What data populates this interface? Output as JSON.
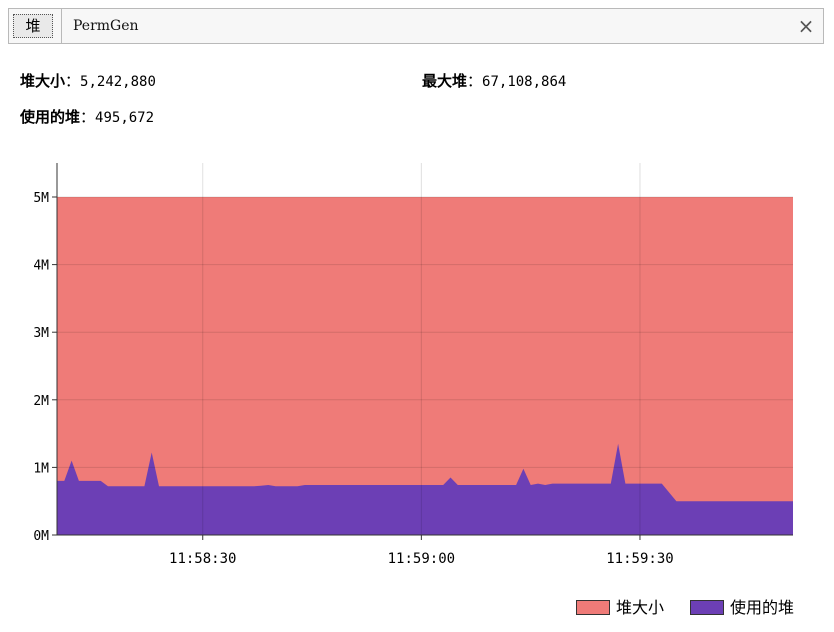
{
  "tabs": {
    "active_label": "堆",
    "other_label": "PermGen",
    "close_glyph": "×"
  },
  "stats": {
    "heap_size": {
      "label": "堆大小",
      "sep": "：",
      "value": "5,242,880"
    },
    "max_heap": {
      "label": "最大堆",
      "sep": "：",
      "value": "67,108,864"
    },
    "used_heap": {
      "label": "使用的堆",
      "sep": "：",
      "value": "495,672"
    }
  },
  "legend": {
    "heap_size": "堆大小",
    "used_heap": "使用的堆"
  },
  "colors": {
    "heap_size": "#ef7b78",
    "used_heap": "#6c3fb5"
  },
  "chart_data": {
    "type": "area",
    "y_ticks": [
      "0M",
      "1M",
      "2M",
      "3M",
      "4M",
      "5M"
    ],
    "ylim": [
      0,
      5
    ],
    "x_ticks": [
      {
        "label": "11:58:30",
        "t": 30
      },
      {
        "label": "11:59:00",
        "t": 60
      },
      {
        "label": "11:59:30",
        "t": 90
      }
    ],
    "xlim": [
      10,
      111
    ],
    "grid": true,
    "legend_position": "bottom-right",
    "series": [
      {
        "name": "堆大小",
        "x": [
          10,
          111
        ],
        "values": [
          5.0,
          5.0
        ]
      },
      {
        "name": "使用的堆",
        "x": [
          10,
          11,
          12,
          13,
          16,
          17,
          20,
          22,
          23,
          24,
          29,
          32,
          37,
          38,
          39,
          40,
          41,
          43,
          44,
          48,
          55,
          61,
          62,
          63,
          64,
          65,
          67,
          72,
          73,
          74,
          75,
          76,
          77,
          78,
          85,
          86,
          87,
          88,
          90,
          91,
          92,
          93,
          95,
          98,
          99,
          101,
          104,
          111
        ],
        "values": [
          0.8,
          0.8,
          1.1,
          0.8,
          0.8,
          0.72,
          0.72,
          0.72,
          1.22,
          0.72,
          0.72,
          0.72,
          0.72,
          0.73,
          0.74,
          0.72,
          0.72,
          0.72,
          0.74,
          0.74,
          0.74,
          0.74,
          0.74,
          0.74,
          0.85,
          0.74,
          0.74,
          0.74,
          0.74,
          0.98,
          0.74,
          0.76,
          0.74,
          0.76,
          0.76,
          0.76,
          1.35,
          0.76,
          0.76,
          0.76,
          0.76,
          0.76,
          0.5,
          0.5,
          0.5,
          0.5,
          0.5,
          0.5
        ]
      }
    ]
  }
}
